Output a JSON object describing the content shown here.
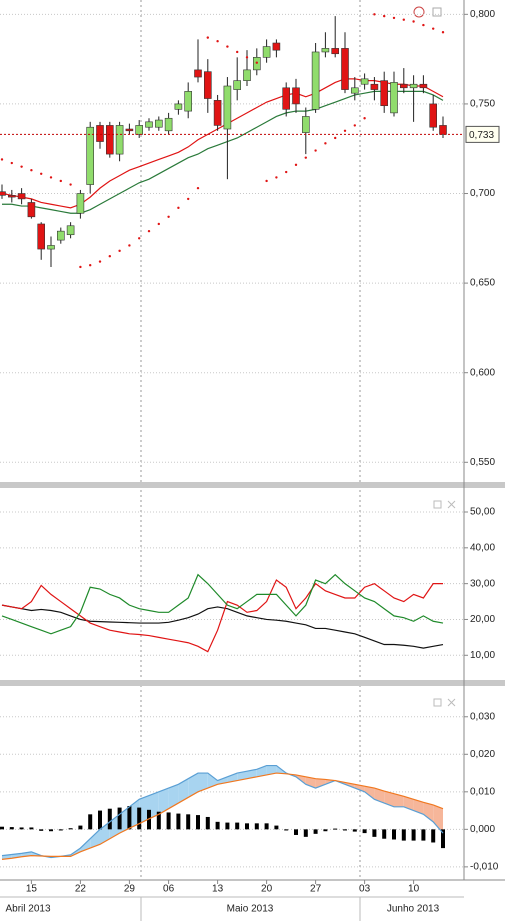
{
  "chart_data": [
    {
      "type": "candlestick",
      "ylim": [
        0.539,
        0.808
      ],
      "yticks": [
        {
          "value": 0.8,
          "label": "0,800"
        },
        {
          "value": 0.75,
          "label": "0,750"
        },
        {
          "value": 0.7,
          "label": "0,700"
        },
        {
          "value": 0.65,
          "label": "0,650"
        },
        {
          "value": 0.6,
          "label": "0,600"
        },
        {
          "value": 0.55,
          "label": "0,550"
        }
      ],
      "grid": true,
      "up_color": "#90dc6c",
      "down_color": "#e01414",
      "open": [
        0.701,
        0.699,
        0.7,
        0.695,
        0.683,
        0.669,
        0.674,
        0.677,
        0.689,
        0.705,
        0.738,
        0.738,
        0.722,
        0.736,
        0.733,
        0.737,
        0.737,
        0.735,
        0.747,
        0.746,
        0.769,
        0.768,
        0.752,
        0.736,
        0.758,
        0.763,
        0.769,
        0.776,
        0.784,
        0.759,
        0.759,
        0.734,
        0.747,
        0.779,
        0.781,
        0.781,
        0.756,
        0.761,
        0.761,
        0.763,
        0.745,
        0.761,
        0.759,
        0.761,
        0.75,
        0.738
      ],
      "high": [
        0.705,
        0.702,
        0.703,
        0.697,
        0.684,
        0.676,
        0.681,
        0.684,
        0.702,
        0.74,
        0.74,
        0.74,
        0.74,
        0.739,
        0.741,
        0.742,
        0.743,
        0.745,
        0.752,
        0.762,
        0.786,
        0.775,
        0.755,
        0.765,
        0.776,
        0.78,
        0.781,
        0.786,
        0.786,
        0.762,
        0.764,
        0.748,
        0.784,
        0.79,
        0.799,
        0.79,
        0.765,
        0.767,
        0.765,
        0.768,
        0.768,
        0.77,
        0.766,
        0.766,
        0.755,
        0.743
      ],
      "low": [
        0.697,
        0.695,
        0.694,
        0.686,
        0.663,
        0.659,
        0.672,
        0.675,
        0.686,
        0.7,
        0.725,
        0.72,
        0.718,
        0.733,
        0.731,
        0.735,
        0.735,
        0.733,
        0.744,
        0.742,
        0.762,
        0.745,
        0.735,
        0.708,
        0.752,
        0.76,
        0.766,
        0.773,
        0.776,
        0.743,
        0.745,
        0.722,
        0.745,
        0.776,
        0.776,
        0.756,
        0.752,
        0.758,
        0.752,
        0.745,
        0.743,
        0.756,
        0.74,
        0.756,
        0.735,
        0.731
      ],
      "close": [
        0.699,
        0.698,
        0.697,
        0.687,
        0.669,
        0.671,
        0.679,
        0.682,
        0.7,
        0.737,
        0.729,
        0.722,
        0.738,
        0.735,
        0.738,
        0.74,
        0.741,
        0.742,
        0.75,
        0.757,
        0.765,
        0.753,
        0.738,
        0.76,
        0.763,
        0.769,
        0.776,
        0.782,
        0.78,
        0.747,
        0.75,
        0.743,
        0.779,
        0.781,
        0.778,
        0.758,
        0.759,
        0.764,
        0.758,
        0.749,
        0.762,
        0.759,
        0.761,
        0.759,
        0.737,
        0.733
      ],
      "overlays": [
        {
          "color": "#e01414",
          "values": [
            0.7,
            0.699,
            0.698,
            0.697,
            0.695,
            0.694,
            0.693,
            0.692,
            0.694,
            0.698,
            0.703,
            0.707,
            0.71,
            0.713,
            0.715,
            0.717,
            0.719,
            0.721,
            0.723,
            0.726,
            0.73,
            0.733,
            0.736,
            0.739,
            0.742,
            0.745,
            0.748,
            0.751,
            0.753,
            0.755,
            0.756,
            0.754,
            0.756,
            0.759,
            0.762,
            0.764,
            0.764,
            0.763,
            0.763,
            0.762,
            0.761,
            0.761,
            0.76,
            0.76,
            0.757,
            0.754
          ]
        },
        {
          "color": "#2a7a3a",
          "values": [
            0.694,
            0.694,
            0.693,
            0.693,
            0.692,
            0.691,
            0.69,
            0.689,
            0.689,
            0.691,
            0.694,
            0.697,
            0.7,
            0.703,
            0.706,
            0.708,
            0.711,
            0.714,
            0.717,
            0.72,
            0.722,
            0.725,
            0.727,
            0.729,
            0.731,
            0.734,
            0.737,
            0.74,
            0.743,
            0.745,
            0.746,
            0.746,
            0.747,
            0.749,
            0.751,
            0.753,
            0.755,
            0.756,
            0.757,
            0.757,
            0.757,
            0.757,
            0.757,
            0.757,
            0.755,
            0.752
          ]
        }
      ],
      "sar": {
        "color": "#e01414",
        "values": [
          0.719,
          0.717,
          0.715,
          0.713,
          0.711,
          0.709,
          0.707,
          0.705,
          0.659,
          0.66,
          0.662,
          0.665,
          0.668,
          0.671,
          0.675,
          0.679,
          0.683,
          0.687,
          0.692,
          0.697,
          0.703,
          0.787,
          0.785,
          0.782,
          0.779,
          0.776,
          0.773,
          0.707,
          0.709,
          0.712,
          0.716,
          0.72,
          0.724,
          0.728,
          0.731,
          0.735,
          0.738,
          0.742,
          0.8,
          0.799,
          0.798,
          0.797,
          0.796,
          0.794,
          0.792,
          0.79
        ]
      },
      "last_price": {
        "value": 0.733,
        "label": "0,733",
        "color": "#c00000"
      }
    },
    {
      "type": "line",
      "ylim": [
        3.1,
        56.7
      ],
      "yticks": [
        {
          "value": 50,
          "label": "50,00"
        },
        {
          "value": 40,
          "label": "40,00"
        },
        {
          "value": 30,
          "label": "30,00"
        },
        {
          "value": 20,
          "label": "20,00"
        },
        {
          "value": 10,
          "label": "10,00"
        }
      ],
      "grid": true,
      "series": [
        {
          "color": "#111111",
          "values": [
            24,
            23.5,
            23,
            22.5,
            22.8,
            22.5,
            22,
            21,
            20,
            19.5,
            19.4,
            19.3,
            19.2,
            19.1,
            19,
            19,
            19,
            19.2,
            19.8,
            20.5,
            21.5,
            23,
            23.5,
            23,
            22,
            21,
            20.5,
            20,
            19.8,
            19.5,
            19,
            18.5,
            17.5,
            17.5,
            17,
            16.5,
            16,
            15,
            14,
            13,
            13,
            12.8,
            12.5,
            12,
            12.5,
            13
          ]
        },
        {
          "color": "#e01414",
          "values": [
            24,
            23.5,
            23,
            25,
            29.5,
            27,
            25,
            23,
            21,
            19,
            18,
            17,
            16.5,
            16,
            15.8,
            15.5,
            15,
            14.5,
            14,
            13.5,
            12.5,
            11,
            17,
            25,
            24,
            22,
            22.5,
            25,
            31,
            29,
            23,
            26,
            30,
            28,
            27,
            26,
            26,
            29,
            30,
            28,
            26,
            25,
            27,
            26,
            30,
            30
          ]
        },
        {
          "color": "#1f8a2a",
          "values": [
            21,
            20,
            19,
            18,
            17,
            16,
            17,
            18,
            22,
            29,
            28.5,
            27,
            26,
            24,
            23,
            22.5,
            22,
            22,
            24,
            26,
            32.5,
            30,
            27,
            24,
            23,
            25,
            27,
            27,
            27,
            24,
            21,
            24,
            31,
            30,
            32.5,
            30,
            28,
            26,
            25,
            23,
            21,
            20.5,
            19.5,
            21,
            19.5,
            19
          ]
        }
      ]
    },
    {
      "type": "macd",
      "ylim": [
        -0.0135,
        0.0382
      ],
      "yticks": [
        {
          "value": 0.03,
          "label": "0,030"
        },
        {
          "value": 0.02,
          "label": "0,020"
        },
        {
          "value": 0.01,
          "label": "0,010"
        },
        {
          "value": 0,
          "label": "0,000"
        },
        {
          "value": -0.01,
          "label": "-0,010"
        }
      ],
      "grid": true,
      "histogram": {
        "color": "#000000",
        "values": [
          0.0007,
          0.0006,
          0.0005,
          0.0005,
          -0.0004,
          -0.0005,
          -0.0003,
          0.0003,
          0.001,
          0.004,
          0.005,
          0.0055,
          0.0058,
          0.0062,
          0.0058,
          0.0052,
          0.0047,
          0.0045,
          0.0042,
          0.004,
          0.0038,
          0.0033,
          0.002,
          0.0018,
          0.0018,
          0.0016,
          0.0016,
          0.0016,
          0.001,
          -0.0003,
          -0.0015,
          -0.002,
          -0.0012,
          -0.0005,
          0.0002,
          -0.0003,
          -0.0006,
          -0.001,
          -0.002,
          -0.0025,
          -0.0027,
          -0.003,
          -0.003,
          -0.003,
          -0.0035,
          -0.005
        ]
      },
      "macd": {
        "color": "#5a9fd4",
        "values": [
          -0.007,
          -0.0067,
          -0.0064,
          -0.006,
          -0.007,
          -0.0075,
          -0.0072,
          -0.0068,
          -0.005,
          -0.0025,
          0,
          0.002,
          0.004,
          0.006,
          0.008,
          0.009,
          0.01,
          0.011,
          0.012,
          0.0135,
          0.015,
          0.015,
          0.013,
          0.014,
          0.015,
          0.0155,
          0.016,
          0.017,
          0.017,
          0.015,
          0.014,
          0.012,
          0.011,
          0.012,
          0.013,
          0.012,
          0.011,
          0.01,
          0.008,
          0.007,
          0.006,
          0.006,
          0.005,
          0.004,
          0.002,
          -0.001
        ]
      },
      "signal": {
        "color": "#f07820",
        "values": [
          -0.008,
          -0.0077,
          -0.0073,
          -0.007,
          -0.0071,
          -0.0072,
          -0.0072,
          -0.0072,
          -0.006,
          -0.005,
          -0.004,
          -0.0025,
          -0.001,
          0.0003,
          0.0015,
          0.0028,
          0.004,
          0.0055,
          0.007,
          0.0085,
          0.01,
          0.011,
          0.012,
          0.0125,
          0.013,
          0.0135,
          0.014,
          0.0145,
          0.015,
          0.0148,
          0.0145,
          0.014,
          0.0135,
          0.0133,
          0.013,
          0.0125,
          0.012,
          0.0115,
          0.011,
          0.0102,
          0.0095,
          0.0088,
          0.008,
          0.0072,
          0.0065,
          0.0055
        ]
      },
      "fill_up": "#a8d4f0",
      "fill_down": "#f6b69a",
      "categories": [
        null,
        null,
        null,
        "15",
        null,
        null,
        null,
        null,
        "22",
        null,
        null,
        null,
        null,
        "29",
        null,
        null,
        null,
        "06",
        null,
        null,
        null,
        null,
        "13",
        null,
        null,
        null,
        null,
        "20",
        null,
        null,
        null,
        null,
        "27",
        null,
        null,
        null,
        null,
        "03",
        null,
        null,
        null,
        null,
        "10",
        null,
        null,
        null
      ],
      "months": [
        "Abril 2013",
        "Maio 2013",
        "Junho 2013"
      ]
    }
  ]
}
